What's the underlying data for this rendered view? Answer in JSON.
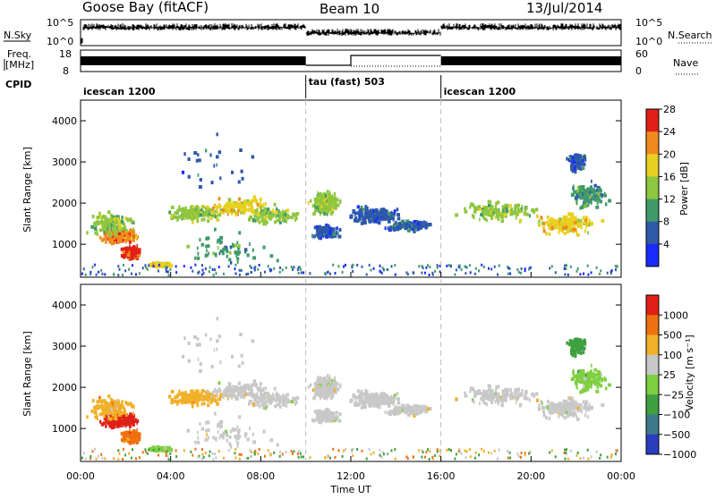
{
  "header": {
    "station": "Goose Bay (fitACF)",
    "beam": "Beam 10",
    "date": "13/Jul/2014"
  },
  "panels": {
    "nsky_label": "N.Sky",
    "nsearch_label": "N.Search",
    "nsky_ticks": [
      "10^5",
      "10^0"
    ],
    "nsearch_ticks": [
      "10^5",
      "10^0"
    ],
    "freq_label_1": "Freq.",
    "freq_label_2": "[MHz]",
    "freq_ticks": [
      "18",
      "8"
    ],
    "nave_label": "Nave",
    "nave_ticks": [
      "60",
      "0"
    ],
    "cpid_label": "CPID",
    "cpid_segments": [
      {
        "label": "icescan 1200",
        "start_hour": 0
      },
      {
        "label": "tau (fast) 503",
        "start_hour": 10
      },
      {
        "label": "icescan 1200",
        "start_hour": 16
      }
    ]
  },
  "chart_data": [
    {
      "type": "heatmap",
      "name": "power",
      "ylabel": "Slant Range [km]",
      "xlabel": "Time UT",
      "x_ticks": [
        "00:00",
        "04:00",
        "08:00",
        "12:00",
        "16:00",
        "20:00",
        "00:00"
      ],
      "xlim_hours": [
        0,
        24
      ],
      "y_ticks": [
        "1000",
        "2000",
        "3000",
        "4000"
      ],
      "ylim": [
        200,
        4500
      ],
      "colorbar_label": "Power [dB]",
      "colorbar_ticks": [
        "4",
        "8",
        "12",
        "16",
        "20",
        "24",
        "28"
      ],
      "colorbar_colors": [
        "#1a2bff",
        "#2f5aa8",
        "#3f9a6a",
        "#8ec63f",
        "#e8d020",
        "#f08a1c",
        "#e02018"
      ]
    },
    {
      "type": "heatmap",
      "name": "velocity",
      "ylabel": "Slant Range [km]",
      "xlabel": "Time UT",
      "x_ticks": [
        "00:00",
        "04:00",
        "08:00",
        "12:00",
        "16:00",
        "20:00",
        "00:00"
      ],
      "xlim_hours": [
        0,
        24
      ],
      "y_ticks": [
        "1000",
        "2000",
        "3000",
        "4000"
      ],
      "ylim": [
        200,
        4500
      ],
      "colorbar_label": "Velocity [m s⁻¹]",
      "colorbar_ticks": [
        "1000",
        "500",
        "100",
        "25",
        "−25",
        "−100",
        "−500",
        "−1000"
      ],
      "colorbar_colors": [
        "#2a3dbf",
        "#3f7a8a",
        "#3fa040",
        "#7ed040",
        "#c8c8c8",
        "#f0b028",
        "#f07010",
        "#e02018"
      ]
    }
  ]
}
